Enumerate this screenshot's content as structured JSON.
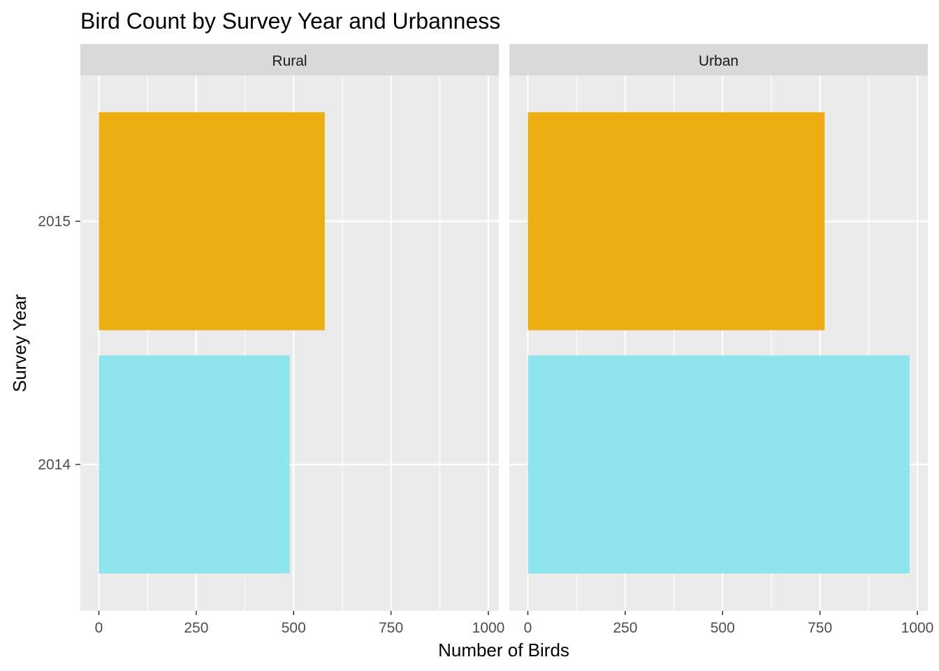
{
  "chart_data": {
    "type": "bar",
    "orientation": "horizontal",
    "title": "Bird Count by Survey Year and Urbanness",
    "xlabel": "Number of Birds",
    "ylabel": "Survey Year",
    "xlim": [
      0,
      1000
    ],
    "xticks": [
      "0",
      "250",
      "500",
      "750",
      "1000"
    ],
    "categories": [
      "2014",
      "2015"
    ],
    "grid": true,
    "legend": "none",
    "colors": {
      "2014": "#8EE5EE",
      "2015": "#EDAE12"
    },
    "facets": [
      {
        "name": "Rural",
        "values": [
          490,
          580
        ]
      },
      {
        "name": "Urban",
        "values": [
          980,
          762
        ]
      }
    ]
  }
}
